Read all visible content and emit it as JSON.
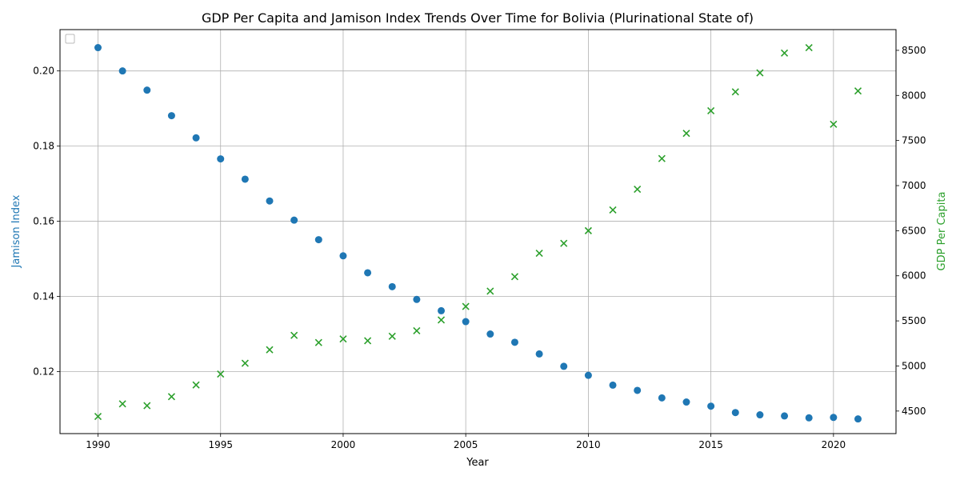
{
  "chart_data": {
    "type": "scatter",
    "title": "GDP Per Capita and Jamison Index Trends Over Time for Bolivia (Plurinational State of)",
    "xlabel": "Year",
    "ylabel_left": "Jamison Index",
    "ylabel_right": "GDP Per Capita",
    "xlim": [
      1988.45,
      2022.55
    ],
    "ylim_left": [
      0.1035,
      0.211
    ],
    "ylim_right": [
      4250,
      8730
    ],
    "x_ticks": [
      1990,
      1995,
      2000,
      2005,
      2010,
      2015,
      2020
    ],
    "y_ticks_left": [
      0.12,
      0.14,
      0.16,
      0.18,
      0.2
    ],
    "y_ticks_left_labels": [
      "0.12",
      "0.14",
      "0.16",
      "0.18",
      "0.20"
    ],
    "y_ticks_right": [
      4500,
      5000,
      5500,
      6000,
      6500,
      7000,
      7500,
      8000,
      8500
    ],
    "grid": true,
    "legend": "top-left",
    "x": [
      1990,
      1991,
      1992,
      1993,
      1994,
      1995,
      1996,
      1997,
      1998,
      1999,
      2000,
      2001,
      2002,
      2003,
      2004,
      2005,
      2006,
      2007,
      2008,
      2009,
      2010,
      2011,
      2012,
      2013,
      2014,
      2015,
      2016,
      2017,
      2018,
      2019,
      2020,
      2021
    ],
    "series": [
      {
        "axis": "left",
        "marker": "circle",
        "color": "#1f77b4",
        "values": [
          0.2062,
          0.2,
          0.1949,
          0.1881,
          0.1822,
          0.1766,
          0.1712,
          0.1654,
          0.1603,
          0.1551,
          0.1508,
          0.1463,
          0.1426,
          0.1392,
          0.1362,
          0.1333,
          0.13,
          0.1278,
          0.1247,
          0.1214,
          0.119,
          0.1164,
          0.115,
          0.113,
          0.1119,
          0.1108,
          0.1091,
          0.1085,
          0.1082,
          0.1077,
          0.1078,
          0.1074
        ]
      },
      {
        "axis": "right",
        "marker": "x",
        "color": "#2ca02c",
        "values": [
          4440,
          4580,
          4560,
          4660,
          4790,
          4910,
          5030,
          5180,
          5340,
          5260,
          5300,
          5280,
          5330,
          5390,
          5510,
          5660,
          5830,
          5990,
          6250,
          6360,
          6500,
          6730,
          6960,
          7300,
          7580,
          7830,
          8040,
          8250,
          8470,
          8530,
          7680,
          8050
        ]
      }
    ]
  }
}
